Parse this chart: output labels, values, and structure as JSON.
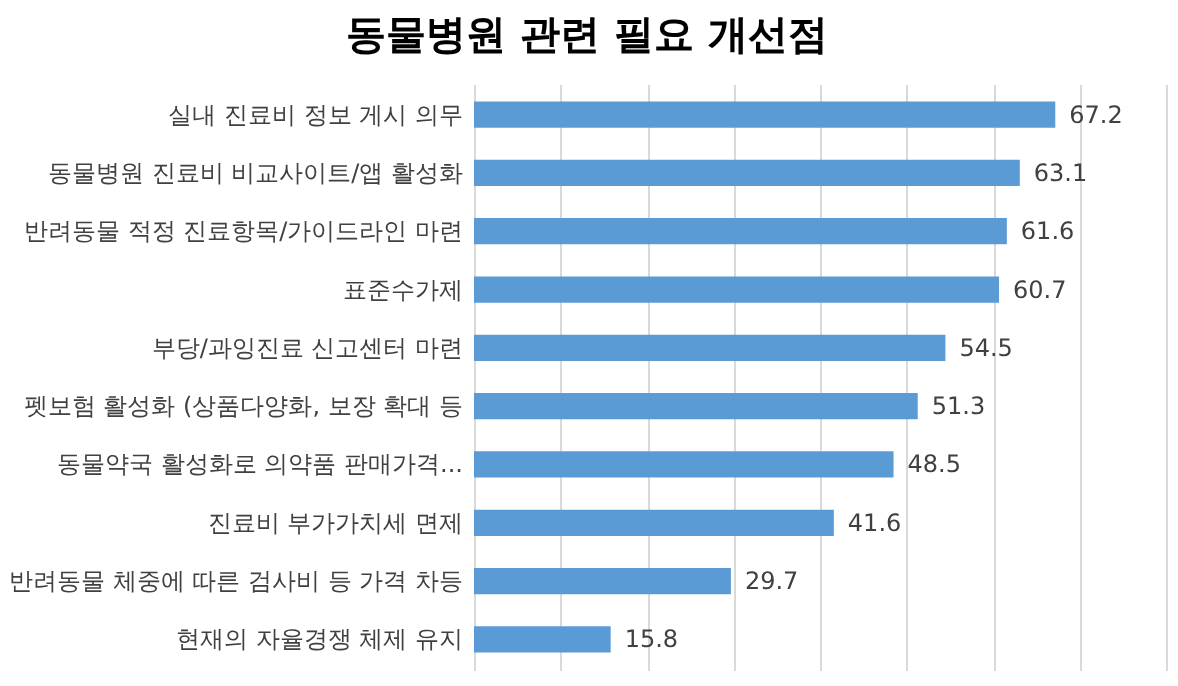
{
  "chart_data": {
    "type": "bar",
    "orientation": "horizontal",
    "title": "동물병원 관련 필요 개선점",
    "categories": [
      "실내 진료비 정보 게시 의무",
      "동물병원 진료비 비교사이트/앱 활성화",
      "반려동물 적정 진료항목/가이드라인 마련",
      "표준수가제",
      "부당/과잉진료 신고센터 마련",
      "펫보험 활성화 (상품다양화, 보장 확대 등",
      "동물약국 활성화로 의약품 판매가격...",
      "진료비 부가가치세 면제",
      "반려동물 체중에 따른 검사비 등 가격 차등",
      "현재의 자율경쟁 체제 유지"
    ],
    "values": [
      67.2,
      63.1,
      61.6,
      60.7,
      54.5,
      51.3,
      48.5,
      41.6,
      29.7,
      15.8
    ],
    "color": "#5b9bd5",
    "xlim": [
      0,
      80
    ],
    "xticks": [
      {
        "value": 0,
        "label": null
      },
      {
        "value": 10,
        "label": null
      },
      {
        "value": 20,
        "label": null
      },
      {
        "value": 30,
        "label": null
      },
      {
        "value": 40,
        "label": null
      },
      {
        "value": 50,
        "label": null
      },
      {
        "value": 60,
        "label": null
      },
      {
        "value": 70,
        "label": null
      },
      {
        "value": 80,
        "label": null
      }
    ],
    "grid": "x",
    "tick_labels": "y",
    "data_labels": true
  }
}
